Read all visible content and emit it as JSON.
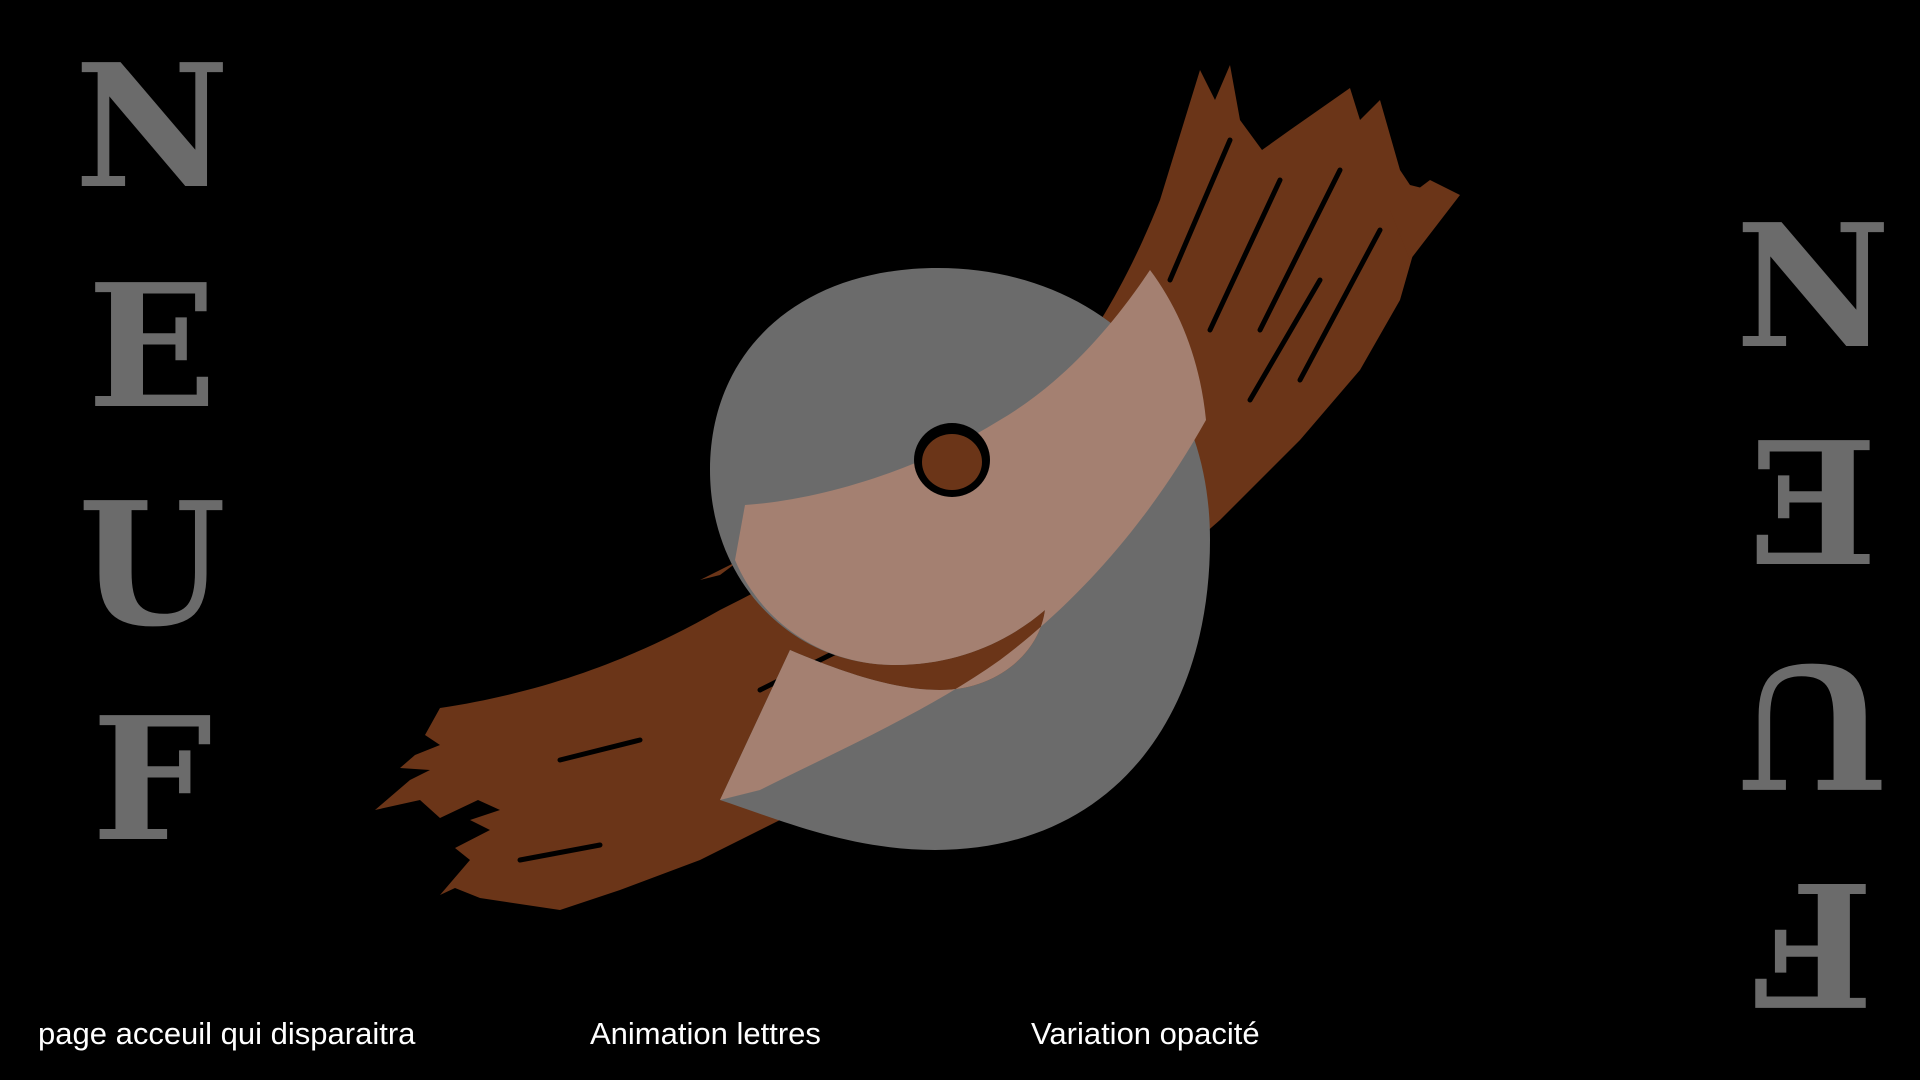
{
  "left_word": [
    "N",
    "E",
    "U",
    "F"
  ],
  "right_word": [
    "N",
    "E",
    "U",
    "F"
  ],
  "center_glyph": "9",
  "captions": {
    "home": "page acceuil qui disparaitra",
    "animation": "Animation lettres",
    "opacity": "Variation opacité"
  },
  "colors": {
    "background": "#000000",
    "letters": "#6b6b6b",
    "brush": "#6b3518",
    "glyph_overlay": "#c8c8c8",
    "caption": "#ffffff"
  }
}
